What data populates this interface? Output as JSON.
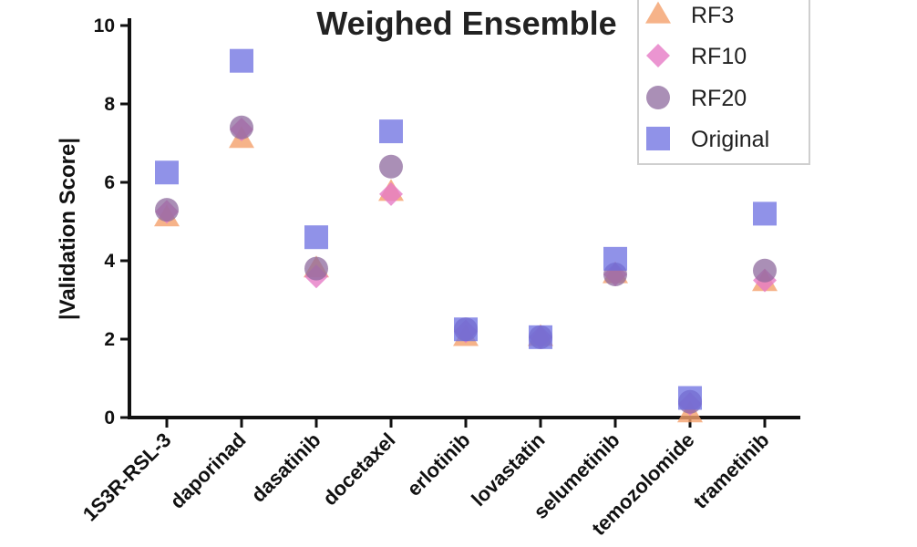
{
  "chart_data": {
    "type": "scatter",
    "title": "Weighed Ensemble",
    "xlabel": "",
    "ylabel": "|Validation Score|",
    "ylim": [
      0,
      10
    ],
    "yticks": [
      "0",
      "2",
      "4",
      "6",
      "8",
      "10"
    ],
    "categories": [
      "1S3R-RSL-3",
      "daporinad",
      "dasatinib",
      "docetaxel",
      "erlotinib",
      "lovastatin",
      "selumetinib",
      "temozolomide",
      "trametinib"
    ],
    "series": [
      {
        "name": "RF3",
        "marker": "triangle",
        "color": "#f4a06c",
        "values": [
          5.1,
          7.1,
          3.8,
          5.75,
          2.05,
          2.05,
          3.65,
          0.1,
          3.45
        ]
      },
      {
        "name": "RF10",
        "marker": "diamond",
        "color": "#e67ac6",
        "values": [
          5.25,
          7.35,
          3.6,
          5.7,
          2.2,
          2.05,
          3.65,
          0.35,
          3.5
        ]
      },
      {
        "name": "RF20",
        "marker": "circle",
        "color": "#8e6a9e",
        "values": [
          5.3,
          7.4,
          3.8,
          6.4,
          2.25,
          2.05,
          3.65,
          0.4,
          3.75
        ]
      },
      {
        "name": "Original",
        "marker": "square",
        "color": "#6b6ee0",
        "values": [
          6.25,
          9.1,
          4.6,
          7.3,
          2.25,
          2.05,
          4.05,
          0.5,
          5.2
        ]
      }
    ],
    "legend": "top-right"
  }
}
